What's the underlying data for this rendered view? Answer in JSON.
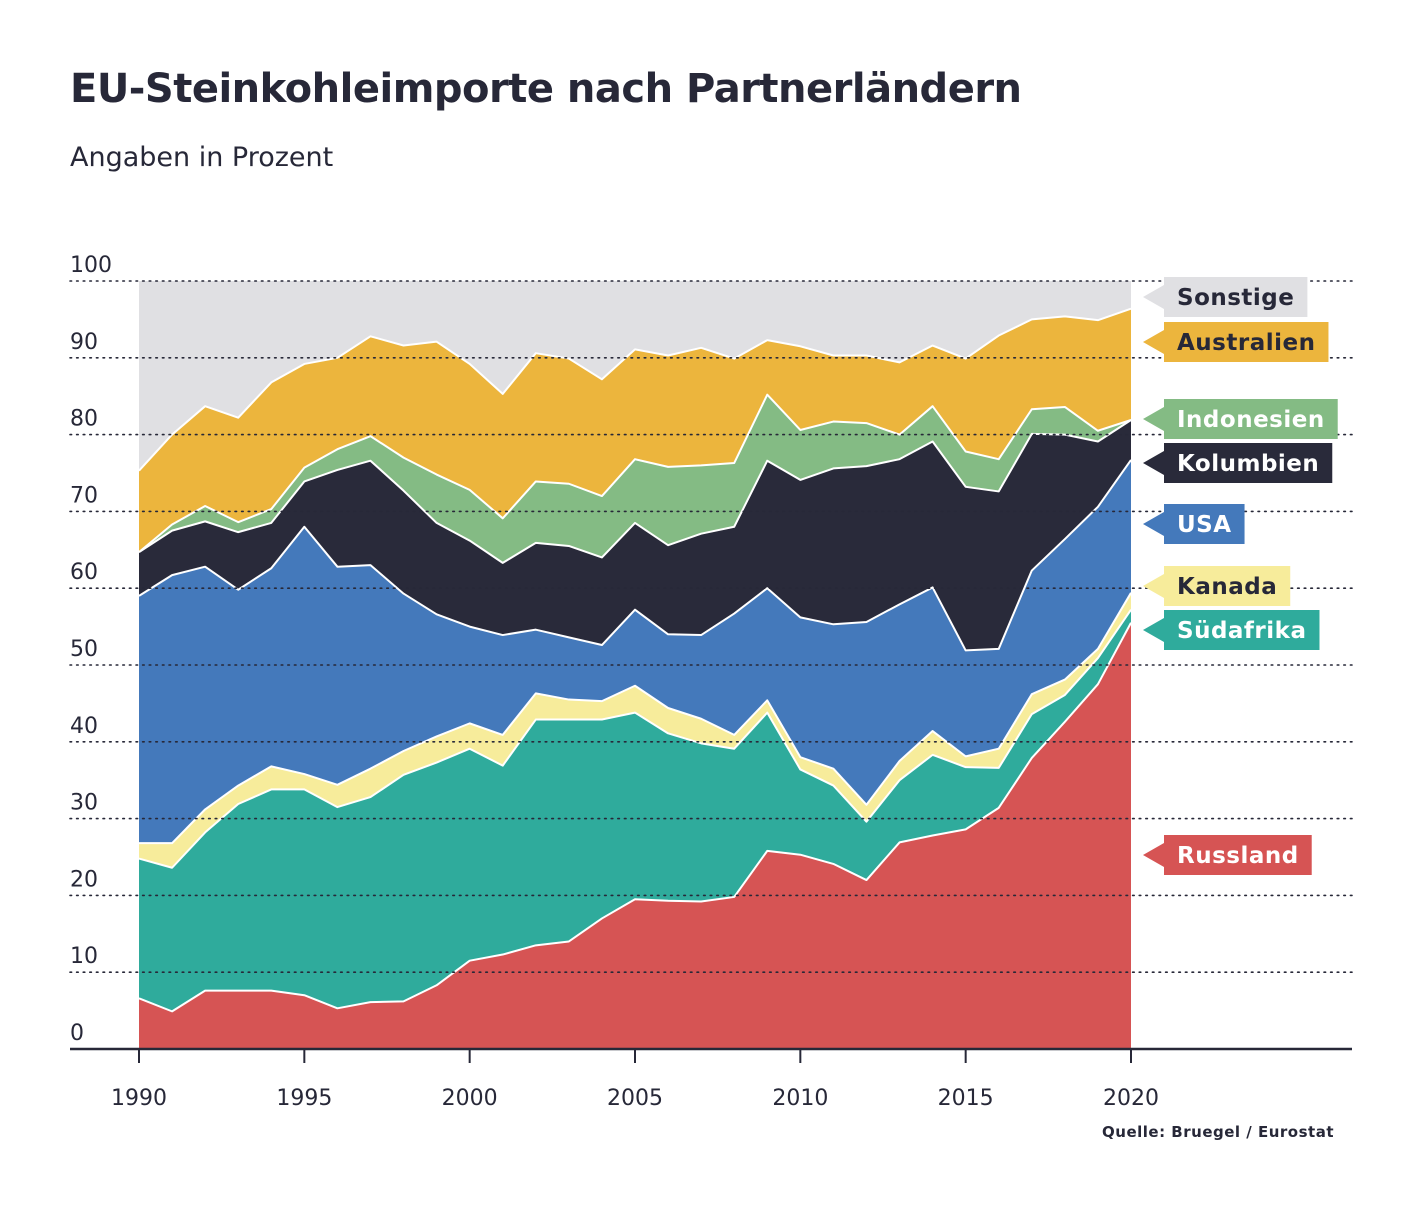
{
  "header": {
    "title": "EU-Steinkohleimporte nach Partnerländern",
    "subtitle": "Angaben in Prozent"
  },
  "footer": {
    "source": "Quelle: Bruegel / Eurostat"
  },
  "chart_data": {
    "type": "area",
    "stacked": true,
    "title": "EU-Steinkohleimporte nach Partnerländern",
    "subtitle": "Angaben in Prozent",
    "ylim": [
      0,
      100
    ],
    "yticks": [
      0,
      10,
      20,
      30,
      40,
      50,
      60,
      70,
      80,
      90,
      100
    ],
    "xticks": [
      1990,
      1995,
      2000,
      2005,
      2010,
      2015,
      2020
    ],
    "grid": true,
    "legend_position": "right",
    "x": [
      1990,
      1991,
      1992,
      1993,
      1994,
      1995,
      1996,
      1997,
      1998,
      1999,
      2000,
      2001,
      2002,
      2003,
      2004,
      2005,
      2006,
      2007,
      2008,
      2009,
      2010,
      2011,
      2012,
      2013,
      2014,
      2015,
      2016,
      2017,
      2018,
      2019,
      2020
    ],
    "series": [
      {
        "name": "Russland",
        "color": "#d65454",
        "label_text_color": "#ffffff",
        "values": [
          6.6,
          4.9,
          7.6,
          7.6,
          7.6,
          7.0,
          5.3,
          6.1,
          6.2,
          8.3,
          11.5,
          12.3,
          13.5,
          14.0,
          17.0,
          19.5,
          19.3,
          19.2,
          19.8,
          25.8,
          25.3,
          24.1,
          22.0,
          26.9,
          27.8,
          28.6,
          31.4,
          37.9,
          42.6,
          47.5,
          55.5
        ]
      },
      {
        "name": "Südafrika",
        "color": "#2fab9c",
        "label_text_color": "#ffffff",
        "values": [
          18.2,
          18.7,
          20.6,
          24.3,
          26.2,
          26.8,
          26.2,
          26.7,
          29.5,
          29.0,
          27.6,
          24.6,
          29.4,
          28.9,
          25.9,
          24.3,
          21.8,
          20.6,
          19.3,
          18.0,
          11.1,
          10.2,
          7.6,
          8.1,
          10.5,
          8.1,
          5.2,
          5.7,
          3.5,
          3.4,
          1.7
        ]
      },
      {
        "name": "Kanada",
        "color": "#f7ec9b",
        "label_text_color": "#272838",
        "values": [
          2.0,
          3.2,
          3.0,
          2.4,
          3.0,
          2.0,
          2.9,
          3.7,
          3.1,
          3.4,
          3.3,
          4.0,
          3.4,
          2.6,
          2.4,
          3.5,
          3.3,
          3.2,
          1.8,
          1.6,
          1.6,
          2.2,
          2.2,
          2.5,
          3.1,
          1.4,
          2.5,
          2.6,
          2.0,
          1.2,
          2.2
        ]
      },
      {
        "name": "USA",
        "color": "#4479bb",
        "label_text_color": "#ffffff",
        "values": [
          32.2,
          34.9,
          31.6,
          25.5,
          25.8,
          32.2,
          28.4,
          26.5,
          20.5,
          15.9,
          12.6,
          13.0,
          8.3,
          8.1,
          7.3,
          9.9,
          9.6,
          10.9,
          15.8,
          14.6,
          18.2,
          18.8,
          23.8,
          20.4,
          18.7,
          13.8,
          13.0,
          16.1,
          18.3,
          18.5,
          17.3
        ]
      },
      {
        "name": "Kolumbien",
        "color": "#292a3a",
        "label_text_color": "#ffffff",
        "values": [
          5.7,
          5.8,
          5.9,
          7.5,
          5.9,
          5.9,
          12.6,
          13.6,
          13.4,
          11.9,
          11.2,
          9.4,
          11.3,
          11.9,
          11.4,
          11.3,
          11.6,
          13.2,
          11.3,
          16.6,
          17.9,
          20.3,
          20.3,
          18.9,
          19.0,
          21.3,
          20.5,
          17.8,
          13.6,
          8.5,
          5.2
        ]
      },
      {
        "name": "Indonesien",
        "color": "#84bb84",
        "label_text_color": "#ffffff",
        "values": [
          0.0,
          0.8,
          2.0,
          1.3,
          1.8,
          1.8,
          2.7,
          3.2,
          4.3,
          6.3,
          6.6,
          5.8,
          8.0,
          8.1,
          8.0,
          8.3,
          10.2,
          8.9,
          8.3,
          8.6,
          6.5,
          6.1,
          5.6,
          3.2,
          4.6,
          4.6,
          4.2,
          3.2,
          3.6,
          1.4,
          0.0
        ]
      },
      {
        "name": "Australien",
        "color": "#ecb53d",
        "label_text_color": "#272838",
        "values": [
          10.6,
          11.7,
          13.0,
          13.6,
          16.5,
          13.5,
          11.9,
          13.0,
          14.6,
          17.3,
          16.4,
          16.2,
          16.7,
          16.3,
          15.2,
          14.3,
          14.5,
          15.3,
          13.6,
          7.1,
          10.9,
          8.6,
          8.8,
          9.4,
          7.9,
          12.1,
          16.1,
          11.7,
          11.8,
          14.4,
          14.5
        ]
      },
      {
        "name": "Sonstige",
        "color": "#e0e0e3",
        "label_text_color": "#272838",
        "values": [
          24.7,
          20.0,
          16.3,
          17.3,
          13.2,
          10.8,
          10.0,
          7.2,
          6.9,
          7.9,
          10.8,
          14.7,
          9.4,
          10.1,
          12.8,
          8.9,
          9.7,
          8.7,
          10.1,
          7.7,
          8.5,
          9.7,
          9.7,
          10.6,
          8.4,
          10.1,
          7.1,
          5.0,
          4.6,
          5.1,
          3.6
        ]
      }
    ]
  }
}
